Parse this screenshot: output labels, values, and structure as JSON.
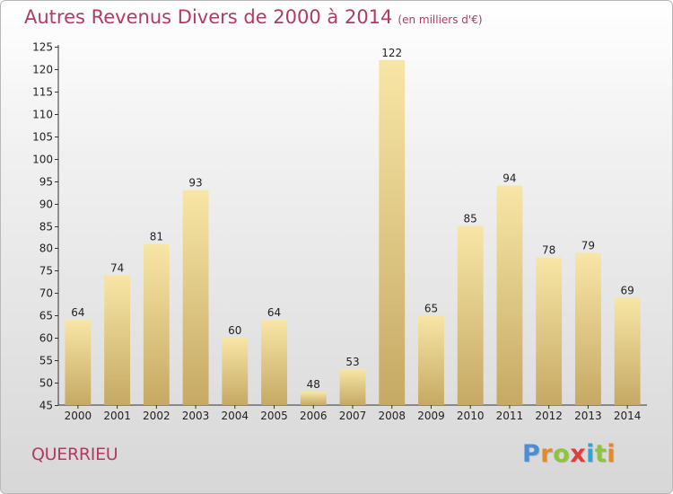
{
  "title": "Autres Revenus Divers de 2000 à 2014",
  "subtitle": "(en milliers d'€)",
  "place": "QUERRIEU",
  "logo": {
    "letters": [
      "P",
      "r",
      "o",
      "x",
      "i",
      "t",
      "i"
    ],
    "colors": [
      "#4a8fd6",
      "#e08a2a",
      "#8cc63f",
      "#e23b3b",
      "#2aa7d8",
      "#8cc63f",
      "#e08a2a"
    ]
  },
  "colors": {
    "title": "#b23a63",
    "bar_light": "#f7e3a1",
    "bar_dark": "#c5a964",
    "axis": "#333333"
  },
  "chart_data": {
    "type": "bar",
    "categories": [
      "2000",
      "2001",
      "2002",
      "2003",
      "2004",
      "2005",
      "2006",
      "2007",
      "2008",
      "2009",
      "2010",
      "2011",
      "2012",
      "2013",
      "2014"
    ],
    "values": [
      64,
      74,
      81,
      93,
      60,
      64,
      48,
      53,
      122,
      65,
      85,
      94,
      78,
      79,
      69
    ],
    "ylim": [
      45,
      125
    ],
    "yticks": [
      45,
      50,
      55,
      60,
      65,
      70,
      75,
      80,
      85,
      90,
      95,
      100,
      105,
      110,
      115,
      120,
      125
    ],
    "title": "Autres Revenus Divers de 2000 à 2014",
    "xlabel": "",
    "ylabel": "",
    "grid": false,
    "legend": "none"
  }
}
